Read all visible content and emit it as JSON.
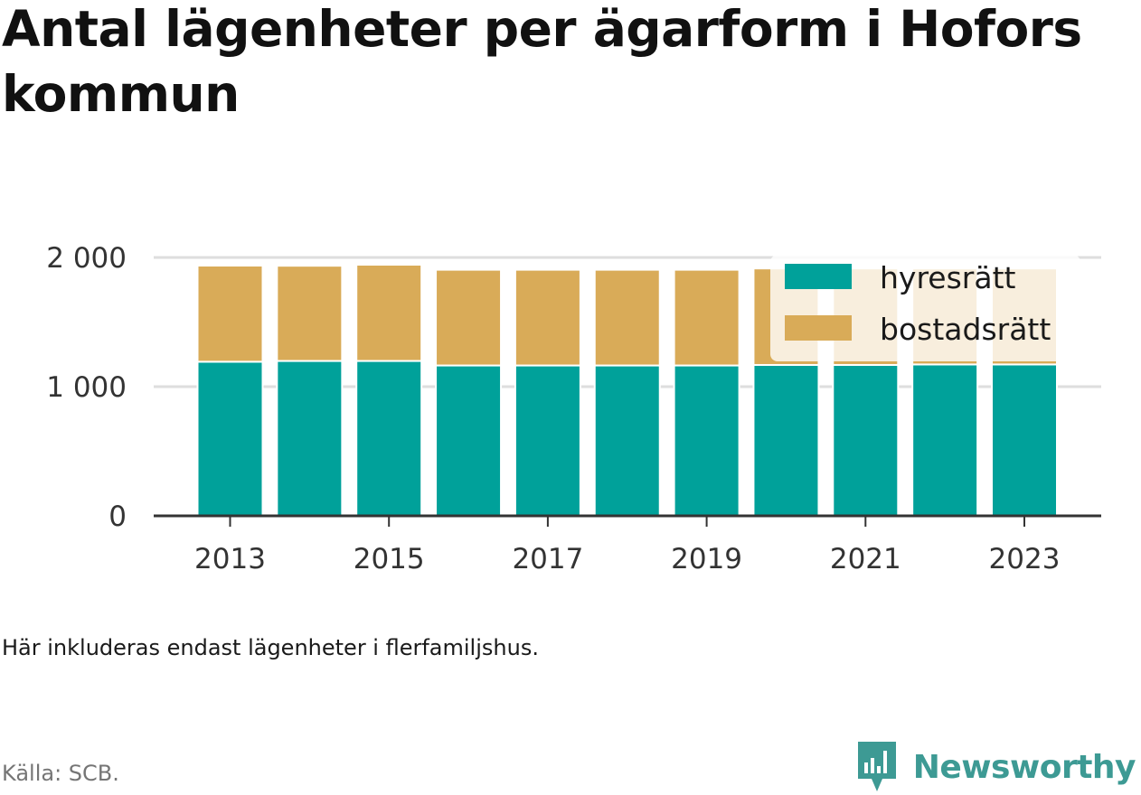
{
  "title": "Antal lägenheter per ägarform i Hofors kommun",
  "note": "Här inkluderas endast lägenheter i flerfamiljshus.",
  "source": "Källa: SCB.",
  "brand": {
    "name": "Newsworthy",
    "icon": "newsworthy-logo-icon",
    "color": "#3d9a94"
  },
  "chart_data": {
    "type": "bar",
    "stacked": true,
    "categories": [
      "2013",
      "2014",
      "2015",
      "2016",
      "2017",
      "2018",
      "2019",
      "2020",
      "2021",
      "2022",
      "2023"
    ],
    "series": [
      {
        "name": "hyresrätt",
        "color": "#00a19a",
        "values": [
          1193,
          1199,
          1199,
          1164,
          1164,
          1164,
          1164,
          1168,
          1168,
          1172,
          1172
        ]
      },
      {
        "name": "bostadsrätt",
        "color": "#d9ab58",
        "values": [
          744,
          737,
          745,
          741,
          741,
          741,
          741,
          747,
          747,
          743,
          743
        ]
      }
    ],
    "y_ticks": [
      0,
      1000,
      2000
    ],
    "y_tick_labels": [
      "0",
      "1 000",
      "2 000"
    ],
    "x_tick_labels": [
      "2013",
      "2015",
      "2017",
      "2019",
      "2021",
      "2023"
    ],
    "ylim": [
      0,
      2000
    ],
    "grid": true,
    "legend": "top-right",
    "xlabel": "",
    "ylabel": ""
  }
}
